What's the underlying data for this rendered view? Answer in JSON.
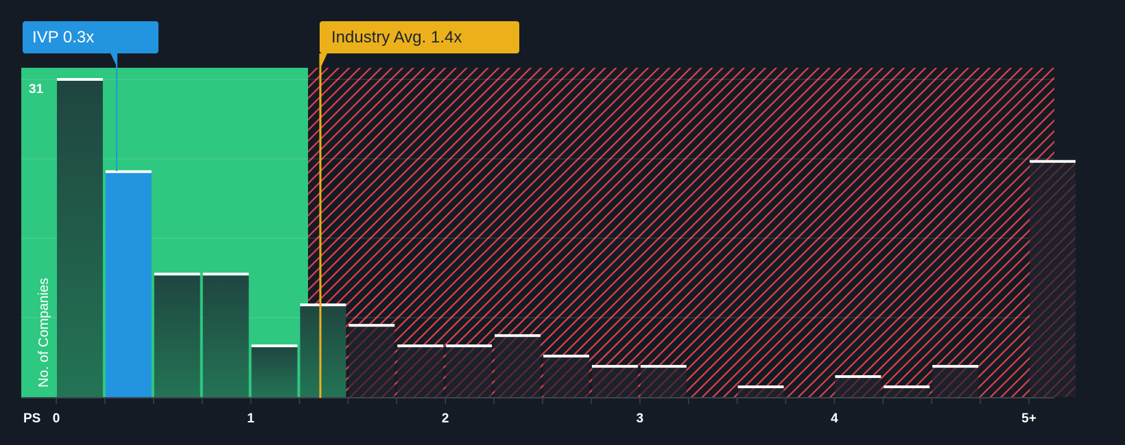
{
  "callouts": {
    "company": {
      "label": "IVP 0.3x",
      "value": 0.3,
      "color": "#2394df"
    },
    "industry": {
      "label": "Industry Avg. 1.4x",
      "value": 1.4,
      "color": "#ecb11a"
    }
  },
  "axis": {
    "y_label": "No. of Companies",
    "y_max_label": "31",
    "x_label": "PS",
    "x_ticks": [
      {
        "label": "0",
        "value": 0
      },
      {
        "label": "1",
        "value": 1
      },
      {
        "label": "2",
        "value": 2
      },
      {
        "label": "3",
        "value": 3
      },
      {
        "label": "4",
        "value": 4
      },
      {
        "label": "5+",
        "value": 5
      }
    ]
  },
  "colors": {
    "background": "#151b24",
    "good_zone": "#2ec880",
    "bad_zone_stripe": "#e0434a",
    "bar_good": "#1f4a3e",
    "bar_highlight": "#2394df",
    "bar_bad": "#1c222c",
    "bar_cap": "#ffffff"
  },
  "chart_data": {
    "type": "bar",
    "title": "",
    "xlabel": "PS",
    "ylabel": "No. of Companies",
    "ylim": [
      0,
      31
    ],
    "bin_width": 0.25,
    "categories": [
      "0-0.25",
      "0.25-0.5",
      "0.5-0.75",
      "0.75-1",
      "1-1.25",
      "1.25-1.5",
      "1.5-1.75",
      "1.75-2",
      "2-2.25",
      "2.25-2.5",
      "2.5-2.75",
      "2.75-3",
      "3-3.25",
      "3.25-3.5",
      "3.5-3.75",
      "3.75-4",
      "4-4.25",
      "4.25-4.5",
      "4.5-4.75",
      "4.75-5",
      "5+"
    ],
    "values": [
      31,
      22,
      12,
      12,
      5,
      9,
      7,
      5,
      5,
      6,
      4,
      3,
      3,
      0,
      1,
      0,
      2,
      1,
      3,
      0,
      23
    ],
    "highlight_index": 1,
    "company": {
      "name": "IVP",
      "value": 0.3
    },
    "industry_average": 1.4,
    "good_zone_max": 1.3,
    "grid": true,
    "legend": "none"
  }
}
